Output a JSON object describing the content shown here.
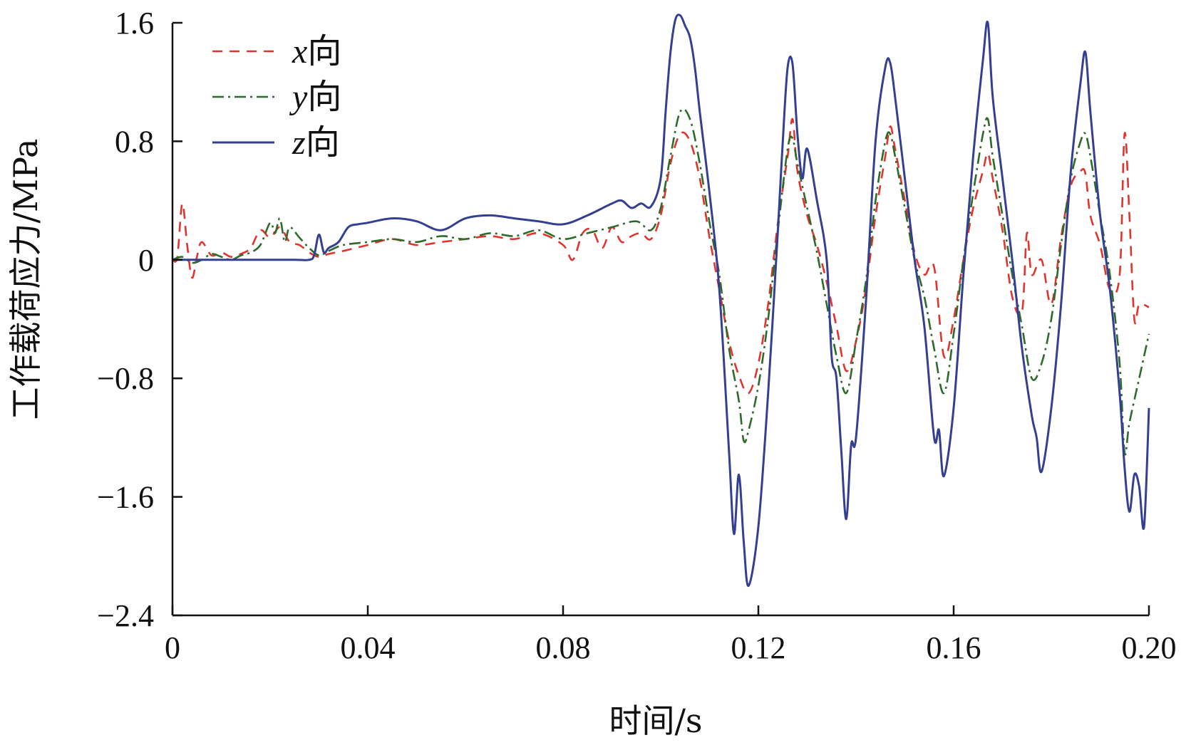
{
  "chart_data": {
    "type": "line",
    "xlabel": "时间/s",
    "ylabel": "工作载荷应力/MPa",
    "xlim": [
      0,
      0.2
    ],
    "ylim": [
      -2.4,
      1.6
    ],
    "x_ticks": [
      {
        "value": 0,
        "label": "0"
      },
      {
        "value": 0.04,
        "label": "0.04"
      },
      {
        "value": 0.08,
        "label": "0.08"
      },
      {
        "value": 0.12,
        "label": "0.12"
      },
      {
        "value": 0.16,
        "label": "0.16"
      },
      {
        "value": 0.2,
        "label": "0.20"
      }
    ],
    "y_ticks": [
      {
        "value": 1.6,
        "label": "1.6"
      },
      {
        "value": 0.8,
        "label": "0.8"
      },
      {
        "value": 0,
        "label": "0"
      },
      {
        "value": -0.8,
        "label": "−0.8"
      },
      {
        "value": -1.6,
        "label": "−1.6"
      },
      {
        "value": -2.4,
        "label": "−2.4"
      }
    ],
    "grid": false,
    "legend_position": "top-left",
    "series": [
      {
        "name": "x向",
        "symbol": "x",
        "suffix": "向",
        "color": "#e0342c",
        "dash": "14,10",
        "x": [
          0,
          0.001,
          0.002,
          0.003,
          0.004,
          0.005,
          0.006,
          0.008,
          0.01,
          0.012,
          0.014,
          0.016,
          0.018,
          0.02,
          0.022,
          0.024,
          0.026,
          0.028,
          0.03,
          0.032,
          0.035,
          0.04,
          0.045,
          0.05,
          0.055,
          0.06,
          0.065,
          0.07,
          0.075,
          0.08,
          0.082,
          0.084,
          0.086,
          0.088,
          0.09,
          0.092,
          0.094,
          0.096,
          0.098,
          0.1,
          0.102,
          0.104,
          0.106,
          0.108,
          0.11,
          0.112,
          0.114,
          0.116,
          0.118,
          0.12,
          0.122,
          0.124,
          0.126,
          0.127,
          0.128,
          0.13,
          0.132,
          0.134,
          0.136,
          0.138,
          0.14,
          0.142,
          0.144,
          0.146,
          0.147,
          0.148,
          0.15,
          0.152,
          0.154,
          0.156,
          0.158,
          0.16,
          0.162,
          0.164,
          0.166,
          0.167,
          0.168,
          0.17,
          0.172,
          0.174,
          0.175,
          0.176,
          0.178,
          0.18,
          0.182,
          0.184,
          0.186,
          0.187,
          0.188,
          0.19,
          0.192,
          0.194,
          0.195,
          0.196,
          0.197,
          0.198,
          0.2
        ],
        "y": [
          0,
          0.02,
          0.38,
          0.1,
          -0.12,
          0.02,
          0.12,
          0.03,
          0.05,
          0.02,
          0.04,
          0.08,
          0.2,
          0.15,
          0.22,
          0.12,
          0.1,
          0.05,
          0.02,
          0.04,
          0.06,
          0.1,
          0.14,
          0.1,
          0.12,
          0.14,
          0.16,
          0.14,
          0.18,
          0.1,
          0.0,
          0.18,
          0.2,
          0.08,
          0.22,
          0.12,
          0.16,
          0.18,
          0.14,
          0.3,
          0.65,
          0.85,
          0.8,
          0.55,
          0.15,
          -0.2,
          -0.55,
          -0.78,
          -0.9,
          -0.7,
          -0.3,
          0.25,
          0.7,
          0.95,
          0.6,
          0.3,
          0.1,
          -0.15,
          -0.45,
          -0.75,
          -0.55,
          -0.2,
          0.3,
          0.7,
          0.9,
          0.75,
          0.4,
          0.05,
          -0.1,
          -0.05,
          -0.65,
          -0.4,
          0.0,
          0.35,
          0.6,
          0.72,
          0.55,
          0.2,
          -0.25,
          -0.35,
          0.18,
          -0.1,
          0.0,
          -0.3,
          0.15,
          0.5,
          0.6,
          0.58,
          0.3,
          0.1,
          -0.2,
          -0.1,
          0.85,
          0.3,
          -0.4,
          -0.3,
          -0.32
        ]
      },
      {
        "name": "y向",
        "symbol": "y",
        "suffix": "向",
        "color": "#2e6b2a",
        "dash": "16,6,3,6",
        "x": [
          0,
          0.002,
          0.004,
          0.006,
          0.008,
          0.01,
          0.012,
          0.014,
          0.016,
          0.018,
          0.02,
          0.021,
          0.022,
          0.023,
          0.024,
          0.026,
          0.028,
          0.03,
          0.032,
          0.035,
          0.04,
          0.045,
          0.05,
          0.055,
          0.06,
          0.065,
          0.07,
          0.075,
          0.08,
          0.085,
          0.09,
          0.095,
          0.098,
          0.1,
          0.102,
          0.104,
          0.106,
          0.108,
          0.11,
          0.112,
          0.114,
          0.116,
          0.117,
          0.118,
          0.12,
          0.122,
          0.124,
          0.126,
          0.127,
          0.128,
          0.13,
          0.132,
          0.134,
          0.136,
          0.138,
          0.14,
          0.142,
          0.144,
          0.146,
          0.147,
          0.148,
          0.15,
          0.152,
          0.154,
          0.156,
          0.158,
          0.16,
          0.162,
          0.164,
          0.166,
          0.167,
          0.168,
          0.17,
          0.172,
          0.174,
          0.176,
          0.178,
          0.18,
          0.182,
          0.184,
          0.186,
          0.187,
          0.188,
          0.19,
          0.192,
          0.194,
          0.195,
          0.196,
          0.198,
          0.2
        ],
        "y": [
          0,
          0.02,
          -0.02,
          0.0,
          0.04,
          0.02,
          0.0,
          0.03,
          0.05,
          0.1,
          0.25,
          0.18,
          0.28,
          0.12,
          0.22,
          0.15,
          0.08,
          0.03,
          0.06,
          0.1,
          0.12,
          0.14,
          0.12,
          0.16,
          0.14,
          0.18,
          0.16,
          0.2,
          0.14,
          0.18,
          0.22,
          0.26,
          0.2,
          0.35,
          0.7,
          1.0,
          0.95,
          0.65,
          0.25,
          -0.1,
          -0.6,
          -0.95,
          -1.22,
          -1.15,
          -0.85,
          -0.4,
          0.2,
          0.75,
          0.82,
          0.65,
          0.35,
          0.05,
          -0.3,
          -0.65,
          -0.9,
          -0.55,
          -0.15,
          0.4,
          0.8,
          0.85,
          0.7,
          0.35,
          0.0,
          -0.25,
          -0.6,
          -0.9,
          -0.5,
          0.0,
          0.45,
          0.85,
          0.95,
          0.7,
          0.3,
          -0.1,
          -0.45,
          -0.8,
          -0.7,
          -0.4,
          0.1,
          0.55,
          0.8,
          0.85,
          0.7,
          0.3,
          -0.1,
          -0.7,
          -1.3,
          -1.1,
          -0.8,
          -0.5
        ]
      },
      {
        "name": "z向",
        "symbol": "z",
        "suffix": "向",
        "color": "#343f92",
        "dash": "",
        "x": [
          0,
          0.005,
          0.01,
          0.015,
          0.02,
          0.025,
          0.028,
          0.029,
          0.03,
          0.031,
          0.032,
          0.034,
          0.036,
          0.038,
          0.04,
          0.045,
          0.05,
          0.055,
          0.06,
          0.065,
          0.07,
          0.075,
          0.08,
          0.085,
          0.09,
          0.092,
          0.094,
          0.096,
          0.098,
          0.1,
          0.101,
          0.102,
          0.103,
          0.104,
          0.105,
          0.106,
          0.107,
          0.108,
          0.11,
          0.112,
          0.114,
          0.115,
          0.116,
          0.117,
          0.118,
          0.12,
          0.122,
          0.124,
          0.125,
          0.126,
          0.127,
          0.128,
          0.129,
          0.13,
          0.132,
          0.134,
          0.135,
          0.136,
          0.137,
          0.138,
          0.139,
          0.14,
          0.142,
          0.144,
          0.146,
          0.147,
          0.148,
          0.15,
          0.152,
          0.154,
          0.156,
          0.157,
          0.158,
          0.16,
          0.162,
          0.164,
          0.166,
          0.167,
          0.168,
          0.17,
          0.172,
          0.174,
          0.176,
          0.177,
          0.178,
          0.18,
          0.182,
          0.184,
          0.186,
          0.187,
          0.188,
          0.19,
          0.192,
          0.194,
          0.195,
          0.196,
          0.197,
          0.198,
          0.199,
          0.2
        ],
        "y": [
          0,
          0,
          0,
          0,
          0,
          0,
          0,
          0.03,
          0.17,
          0.05,
          0.08,
          0.12,
          0.22,
          0.24,
          0.25,
          0.28,
          0.26,
          0.2,
          0.28,
          0.3,
          0.28,
          0.26,
          0.24,
          0.3,
          0.38,
          0.4,
          0.35,
          0.38,
          0.36,
          0.55,
          1.0,
          1.4,
          1.62,
          1.65,
          1.58,
          1.5,
          1.3,
          1.0,
          0.45,
          -0.2,
          -1.3,
          -1.85,
          -1.45,
          -1.9,
          -2.2,
          -1.8,
          -0.9,
          0.2,
          0.8,
          1.3,
          1.32,
          0.85,
          0.55,
          0.75,
          0.4,
          0.0,
          -0.65,
          -0.8,
          -1.3,
          -1.75,
          -1.25,
          -1.2,
          -0.3,
          0.8,
          1.3,
          1.33,
          1.1,
          0.55,
          0.0,
          -0.45,
          -1.2,
          -1.15,
          -1.46,
          -1.0,
          -0.1,
          0.7,
          1.35,
          1.6,
          1.1,
          0.55,
          0.0,
          -0.6,
          -1.05,
          -1.2,
          -1.43,
          -1.0,
          -0.3,
          0.6,
          1.2,
          1.4,
          1.0,
          0.3,
          -0.2,
          -0.9,
          -1.4,
          -1.7,
          -1.45,
          -1.53,
          -1.8,
          -1.0
        ]
      }
    ]
  }
}
